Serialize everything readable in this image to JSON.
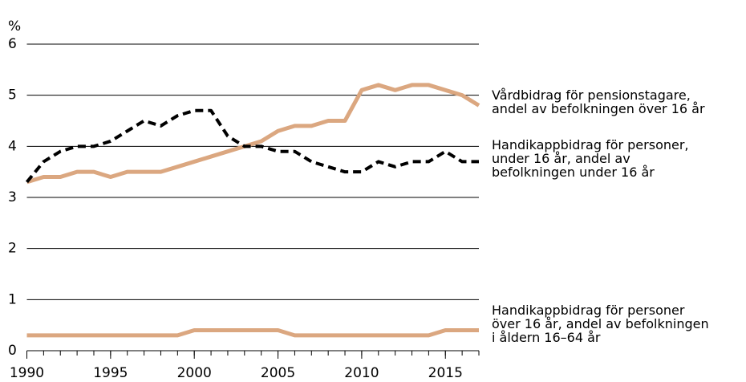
{
  "chart_data": {
    "type": "line",
    "y_label": "%",
    "x": [
      1990,
      1991,
      1992,
      1993,
      1994,
      1995,
      1996,
      1997,
      1998,
      1999,
      2000,
      2001,
      2002,
      2003,
      2004,
      2005,
      2006,
      2007,
      2008,
      2009,
      2010,
      2011,
      2012,
      2013,
      2014,
      2015,
      2016,
      2017
    ],
    "series": [
      {
        "name": "Vårdbidrag för pensionstagare,\nandel av befolkningen över 16 år",
        "color": "#dba780",
        "dashed": false,
        "values": [
          3.3,
          3.4,
          3.4,
          3.5,
          3.5,
          3.4,
          3.5,
          3.5,
          3.5,
          3.6,
          3.7,
          3.8,
          3.9,
          4.0,
          4.1,
          4.3,
          4.4,
          4.4,
          4.5,
          4.5,
          5.1,
          5.2,
          5.1,
          5.2,
          5.2,
          5.1,
          5.0,
          4.8
        ]
      },
      {
        "name": "Handikappbidrag för personer,\nunder 16 år, andel av\nbefolkningen under 16 år",
        "color": "#000000",
        "dashed": true,
        "values": [
          3.3,
          3.7,
          3.9,
          4.0,
          4.0,
          4.1,
          4.3,
          4.5,
          4.4,
          4.6,
          4.7,
          4.7,
          4.2,
          4.0,
          4.0,
          3.9,
          3.9,
          3.7,
          3.6,
          3.5,
          3.5,
          3.7,
          3.6,
          3.7,
          3.7,
          3.9,
          3.7,
          3.7
        ]
      },
      {
        "name": "Handikappbidrag för personer\növer 16 år, andel av befolkningen\ni åldern 16–64 år",
        "color": "#dba780",
        "dashed": false,
        "values": [
          0.3,
          0.3,
          0.3,
          0.3,
          0.3,
          0.3,
          0.3,
          0.3,
          0.3,
          0.3,
          0.4,
          0.4,
          0.4,
          0.4,
          0.4,
          0.4,
          0.3,
          0.3,
          0.3,
          0.3,
          0.3,
          0.3,
          0.3,
          0.3,
          0.3,
          0.4,
          0.4,
          0.4
        ]
      }
    ],
    "xlim": [
      1990,
      2017
    ],
    "xticks": [
      1990,
      1995,
      2000,
      2005,
      2010,
      2015
    ],
    "ylim": [
      0,
      6
    ],
    "yticks": [
      0,
      1,
      2,
      3,
      4,
      5,
      6
    ],
    "grid": true
  }
}
